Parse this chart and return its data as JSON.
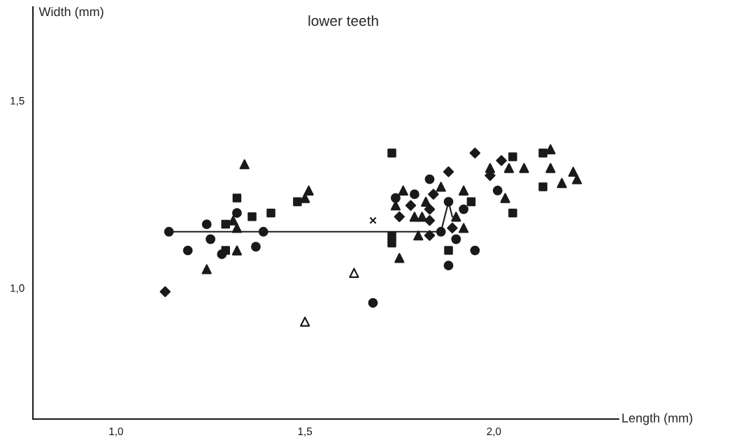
{
  "chart_data": {
    "type": "scatter",
    "title": "lower teeth",
    "xlabel": "Length (mm)",
    "ylabel": "Width (mm)",
    "xlim": [
      0.78,
      2.33
    ],
    "ylim": [
      0.65,
      1.75
    ],
    "xticks": [
      {
        "value": 1.0,
        "label": "1,0"
      },
      {
        "value": 1.5,
        "label": "1,5"
      },
      {
        "value": 2.0,
        "label": "2,0"
      }
    ],
    "yticks": [
      {
        "value": 1.0,
        "label": "1,0"
      },
      {
        "value": 1.5,
        "label": "1,5"
      }
    ],
    "grid": false,
    "legend": false,
    "series": [
      {
        "type": "scatter",
        "marker": "circle",
        "color": "#1a1a1a",
        "x": [
          1.14,
          1.19,
          1.24,
          1.25,
          1.28,
          1.32,
          1.37,
          1.39,
          1.74,
          1.79,
          1.83,
          1.88,
          1.92,
          1.86,
          1.9,
          1.95,
          1.88,
          1.68,
          2.01
        ],
        "values": [
          1.15,
          1.1,
          1.17,
          1.13,
          1.09,
          1.2,
          1.11,
          1.15,
          1.24,
          1.25,
          1.29,
          1.23,
          1.21,
          1.15,
          1.13,
          1.1,
          1.06,
          0.96,
          1.26
        ]
      },
      {
        "type": "scatter",
        "marker": "square",
        "color": "#1a1a1a",
        "x": [
          1.32,
          1.29,
          1.36,
          1.41,
          1.48,
          1.29,
          1.73,
          1.73,
          1.73,
          1.94,
          1.88,
          2.05,
          2.13,
          2.13,
          2.05
        ],
        "values": [
          1.24,
          1.17,
          1.19,
          1.2,
          1.23,
          1.1,
          1.36,
          1.14,
          1.12,
          1.23,
          1.1,
          1.35,
          1.36,
          1.27,
          1.2
        ]
      },
      {
        "type": "scatter",
        "marker": "triangle",
        "color": "#1a1a1a",
        "x": [
          1.34,
          1.51,
          1.5,
          1.31,
          1.32,
          1.32,
          1.24,
          1.76,
          1.74,
          1.82,
          1.86,
          1.92,
          1.79,
          1.81,
          1.8,
          1.75,
          1.9,
          1.92,
          1.99,
          2.04,
          2.08,
          2.03,
          2.15,
          2.15,
          2.18,
          2.21,
          2.22
        ],
        "values": [
          1.33,
          1.26,
          1.24,
          1.18,
          1.16,
          1.1,
          1.05,
          1.26,
          1.22,
          1.23,
          1.27,
          1.26,
          1.19,
          1.19,
          1.14,
          1.08,
          1.19,
          1.16,
          1.32,
          1.32,
          1.32,
          1.24,
          1.37,
          1.32,
          1.28,
          1.31,
          1.29
        ]
      },
      {
        "type": "scatter",
        "marker": "diamond",
        "color": "#1a1a1a",
        "x": [
          1.13,
          1.95,
          2.02,
          1.88,
          1.99,
          1.84,
          1.78,
          1.83,
          1.75,
          1.83,
          1.89,
          1.83
        ],
        "values": [
          0.99,
          1.36,
          1.34,
          1.31,
          1.3,
          1.25,
          1.22,
          1.21,
          1.19,
          1.18,
          1.16,
          1.14
        ]
      },
      {
        "type": "scatter",
        "marker": "triangle",
        "color": "#ffffff",
        "x": [
          1.63,
          1.5
        ],
        "values": [
          1.04,
          0.91
        ]
      },
      {
        "type": "scatter",
        "marker": "cross",
        "color": "#1a1a1a",
        "x": [
          1.68
        ],
        "values": [
          1.18
        ]
      },
      {
        "type": "line",
        "marker": "none",
        "line_style": "solid",
        "color": "#1a1a1a",
        "x": [
          1.14,
          1.86,
          1.88,
          1.89
        ],
        "values": [
          1.15,
          1.15,
          1.23,
          1.19
        ]
      }
    ]
  }
}
